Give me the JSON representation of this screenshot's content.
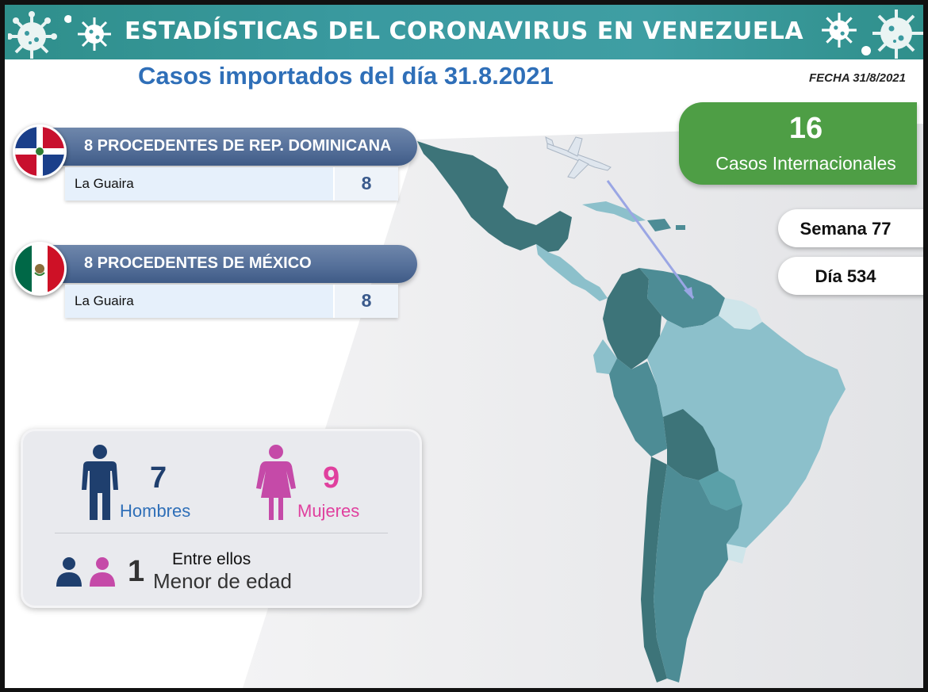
{
  "header": {
    "title": "ESTADÍSTICAS DEL CORONAVIRUS EN VENEZUELA",
    "subtitle": "Casos importados del día 31.8.2021",
    "date_label": "FECHA 31/8/2021"
  },
  "origins": [
    {
      "title": "8 PROCEDENTES DE REP. DOMINICANA",
      "flag_icon": "dominican-republic-flag-icon",
      "rows": [
        {
          "name": "La Guaira",
          "count": "8"
        }
      ]
    },
    {
      "title": "8 PROCEDENTES DE MÉXICO",
      "flag_icon": "mexico-flag-icon",
      "rows": [
        {
          "name": "La Guaira",
          "count": "8"
        }
      ]
    }
  ],
  "international": {
    "count": "16",
    "label": "Casos Internacionales"
  },
  "week": {
    "label": "Semana 77"
  },
  "day": {
    "label": "Día 534"
  },
  "gender": {
    "men": {
      "count": "7",
      "label": "Hombres",
      "icon": "man-icon",
      "color": "#1f3f6e"
    },
    "women": {
      "count": "9",
      "label": "Mujeres",
      "icon": "woman-icon",
      "color": "#c54aa8"
    },
    "minors": {
      "count": "1",
      "label_top": "Entre ellos",
      "label_bottom": "Menor de edad",
      "icon": "children-icon"
    }
  },
  "colors": {
    "banner": "#3a9aa0",
    "subtitle": "#2f6fb8",
    "international_box": "#4e9e45",
    "origin_bar": "#55709a"
  },
  "map": {
    "icon": "latin-america-map-icon",
    "plane_icon": "airplane-icon"
  }
}
